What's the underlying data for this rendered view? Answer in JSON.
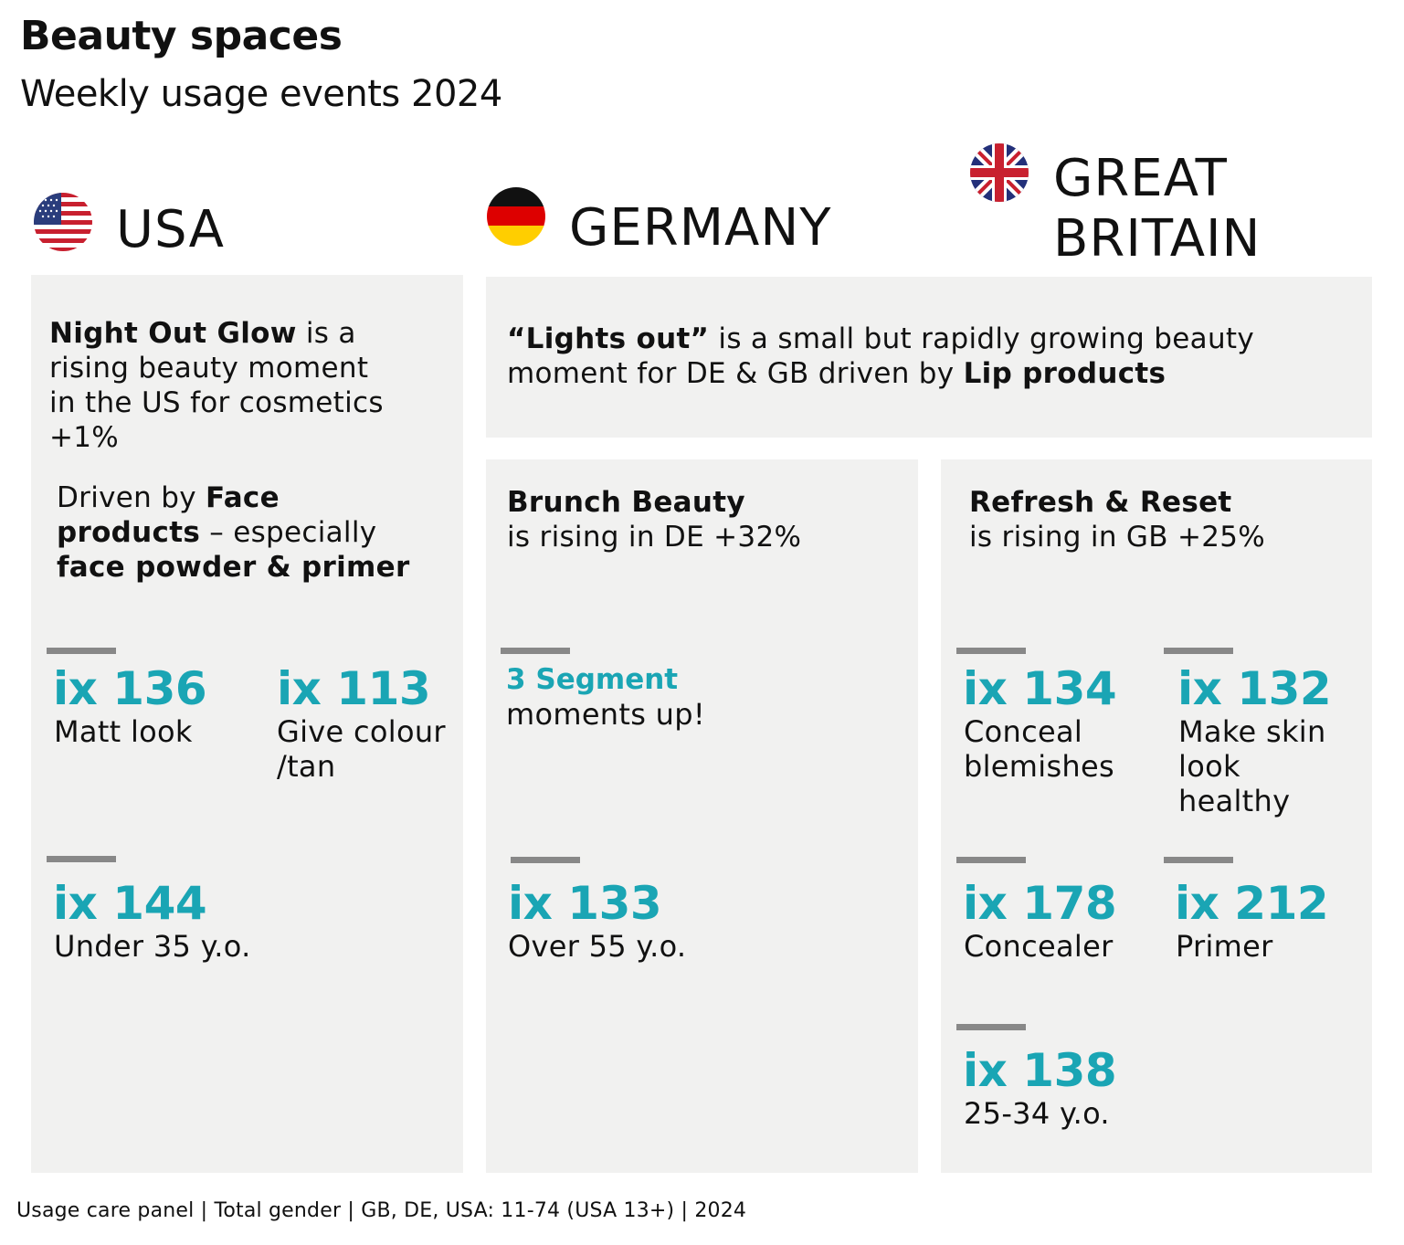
{
  "header": {
    "title": "Beauty spaces",
    "subtitle": "Weekly usage events 2024"
  },
  "countries": {
    "usa": {
      "name": "USA",
      "flag_icon": "us-flag-icon"
    },
    "germany": {
      "name": "GERMANY",
      "flag_icon": "germany-flag-icon"
    },
    "gb": {
      "name_line1": "GREAT",
      "name_line2": "BRITAIN",
      "flag_icon": "uk-flag-icon"
    }
  },
  "usa_panel": {
    "headline_bold": "Night Out Glow",
    "headline_rest_1": " is a",
    "headline_line2": "rising beauty moment",
    "headline_line3": "in the US for cosmetics",
    "headline_line4": "+1%",
    "driver_prefix": "Driven by ",
    "driver_bold_1": "Face",
    "driver_bold_2": "products",
    "driver_mid": " – especially",
    "driver_bold_3": "face powder & primer",
    "stats": [
      {
        "index": "ix 136",
        "label_1": "Matt look",
        "label_2": ""
      },
      {
        "index": "ix 113",
        "label_1": "Give colour",
        "label_2": "/tan"
      },
      {
        "index": "ix 144",
        "label_1": "Under 35 y.o.",
        "label_2": ""
      }
    ]
  },
  "shared_panel": {
    "bold_1": "“Lights out”",
    "rest_1": " is a small but rapidly growing beauty",
    "line2_prefix": "moment for DE & GB driven by ",
    "bold_2": "Lip products"
  },
  "germany_panel": {
    "headline_bold": "Brunch Beauty",
    "headline_line2": "is rising in DE +32%",
    "segment_bold": "3 Segment",
    "segment_line2": "moments up!",
    "stats": [
      {
        "index": "ix 133",
        "label_1": "Over 55 y.o."
      }
    ]
  },
  "gb_panel": {
    "headline_bold": "Refresh & Reset",
    "headline_line2": "is rising in GB +25%",
    "stats": [
      {
        "index": "ix 134",
        "label_1": "Conceal",
        "label_2": "blemishes",
        "label_3": ""
      },
      {
        "index": "ix 132",
        "label_1": "Make skin",
        "label_2": "look",
        "label_3": "healthy"
      },
      {
        "index": "ix 178",
        "label_1": "Concealer",
        "label_2": "",
        "label_3": ""
      },
      {
        "index": "ix 212",
        "label_1": "Primer",
        "label_2": "",
        "label_3": ""
      },
      {
        "index": "ix 138",
        "label_1": "25-34 y.o.",
        "label_2": "",
        "label_3": ""
      }
    ]
  },
  "footer": {
    "source": "Usage care panel | Total gender | GB, DE, USA: 11-74 (USA 13+) | 2024"
  },
  "colors": {
    "accent": "#1aa5b4",
    "panel_bg": "#f1f1f0",
    "divider": "#888888"
  }
}
